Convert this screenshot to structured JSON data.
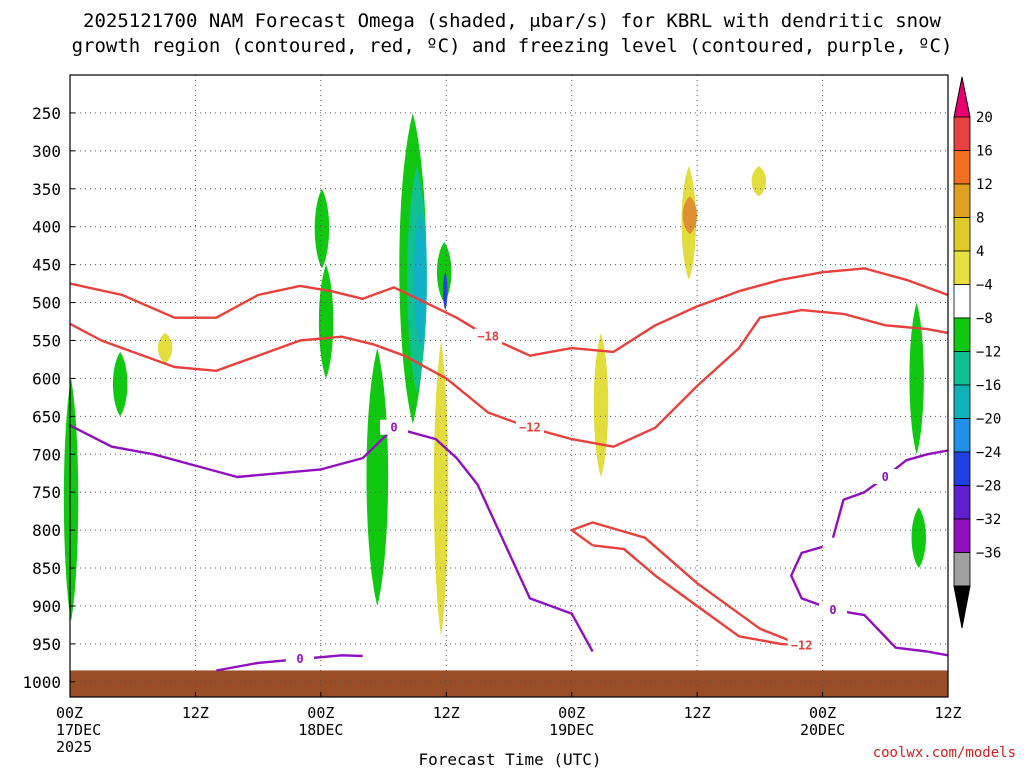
{
  "chart_data": {
    "type": "time-height",
    "title_line1": "2025121700 NAM Forecast Omega (shaded, μbar/s) for KBRL with dendritic snow",
    "title_line2": "growth region (contoured, red, ºC) and freezing level (contoured, purple, ºC)",
    "xlabel": "Forecast Time (UTC)",
    "ylabel": "Pressure (hPa)",
    "credit": "coolwx.com/models",
    "x_ticks": [
      {
        "hour": 0,
        "label": "00Z",
        "sub1": "17DEC",
        "sub2": "2025"
      },
      {
        "hour": 12,
        "label": "12Z",
        "sub1": "",
        "sub2": ""
      },
      {
        "hour": 24,
        "label": "00Z",
        "sub1": "18DEC",
        "sub2": ""
      },
      {
        "hour": 36,
        "label": "12Z",
        "sub1": "",
        "sub2": ""
      },
      {
        "hour": 48,
        "label": "00Z",
        "sub1": "19DEC",
        "sub2": ""
      },
      {
        "hour": 60,
        "label": "12Z",
        "sub1": "",
        "sub2": ""
      },
      {
        "hour": 72,
        "label": "00Z",
        "sub1": "20DEC",
        "sub2": ""
      },
      {
        "hour": 84,
        "label": "12Z",
        "sub1": "",
        "sub2": ""
      }
    ],
    "xlim_hours": [
      0,
      84
    ],
    "y_ticks": [
      250,
      300,
      350,
      400,
      450,
      500,
      550,
      600,
      650,
      700,
      750,
      800,
      850,
      900,
      950,
      1000
    ],
    "ylim_hpa": [
      200,
      1020
    ],
    "colorbar": {
      "labels": [
        "20",
        "16",
        "12",
        "8",
        "4",
        "−4",
        "−8",
        "−12",
        "−16",
        "−20",
        "−24",
        "−28",
        "−32",
        "−36"
      ],
      "top_arrow": "#e8006e",
      "bottom_arrow": "#000000",
      "colors": [
        "#e84040",
        "#f07020",
        "#e0a020",
        "#e0c828",
        "#e8e040",
        "#ffffff",
        "#10c810",
        "#10c090",
        "#10b0b8",
        "#2090e8",
        "#2040e0",
        "#6020d0",
        "#9010c0",
        "#a0a0a0"
      ]
    },
    "omega_cells": [
      {
        "name": "green-early-1",
        "level": -6,
        "x": 0.1,
        "ymin": 600,
        "ymax": 920
      },
      {
        "name": "green-early-2",
        "level": -6,
        "x": 4.8,
        "ymin": 565,
        "ymax": 650
      },
      {
        "name": "yellow-early",
        "level": 5,
        "x": 9.1,
        "ymin": 540,
        "ymax": 580
      },
      {
        "name": "green-mid-1",
        "level": -6,
        "x": 24.1,
        "ymin": 350,
        "ymax": 455
      },
      {
        "name": "green-mid-2",
        "level": -6,
        "x": 24.5,
        "ymin": 450,
        "ymax": 600
      },
      {
        "name": "green-main-low",
        "level": -6,
        "x": 29.4,
        "ymin": 560,
        "ymax": 900
      },
      {
        "name": "green-main-tall",
        "level": -6,
        "x": 32.8,
        "ymin": 250,
        "ymax": 660
      },
      {
        "name": "teal-main",
        "level": -10,
        "x": 33.2,
        "ymin": 320,
        "ymax": 620
      },
      {
        "name": "cyan-main",
        "level": -14,
        "x": 33.5,
        "ymin": 380,
        "ymax": 560
      },
      {
        "name": "green-right",
        "level": -6,
        "x": 35.8,
        "ymin": 420,
        "ymax": 500
      },
      {
        "name": "blue-core",
        "level": -22,
        "x": 35.9,
        "ymin": 460,
        "ymax": 510
      },
      {
        "name": "yellow-lower",
        "level": 5,
        "x": 35.5,
        "ymin": 550,
        "ymax": 940
      },
      {
        "name": "yellow-day2",
        "level": 5,
        "x": 50.8,
        "ymin": 540,
        "ymax": 730
      },
      {
        "name": "yellow-upper",
        "level": 5,
        "x": 59.2,
        "ymin": 320,
        "ymax": 470
      },
      {
        "name": "orange-spot",
        "level": 9,
        "x": 59.3,
        "ymin": 360,
        "ymax": 410
      },
      {
        "name": "yellow-top-right",
        "level": 5,
        "x": 65.9,
        "ymin": 320,
        "ymax": 360
      },
      {
        "name": "green-late",
        "level": -6,
        "x": 81.0,
        "ymin": 500,
        "ymax": 700
      },
      {
        "name": "green-late-low",
        "level": -6,
        "x": 81.2,
        "ymin": 770,
        "ymax": 850
      }
    ],
    "contours": [
      {
        "name": "dgz-minus18",
        "color": "#e8403c",
        "label": "−18",
        "points": [
          [
            0,
            475
          ],
          [
            5,
            490
          ],
          [
            10,
            520
          ],
          [
            14,
            520
          ],
          [
            18,
            490
          ],
          [
            22,
            478
          ],
          [
            25,
            485
          ],
          [
            28,
            495
          ],
          [
            31,
            480
          ],
          [
            34,
            500
          ],
          [
            37,
            520
          ],
          [
            40,
            545
          ],
          [
            44,
            570
          ],
          [
            48,
            560
          ],
          [
            52,
            565
          ],
          [
            56,
            530
          ],
          [
            60,
            505
          ],
          [
            64,
            485
          ],
          [
            68,
            470
          ],
          [
            72,
            460
          ],
          [
            76,
            455
          ],
          [
            80,
            470
          ],
          [
            84,
            490
          ]
        ]
      },
      {
        "name": "dgz-minus12",
        "color": "#e8403c",
        "label": "−12",
        "points": [
          [
            0,
            528
          ],
          [
            3,
            550
          ],
          [
            6,
            565
          ],
          [
            10,
            585
          ],
          [
            14,
            590
          ],
          [
            18,
            570
          ],
          [
            22,
            550
          ],
          [
            26,
            545
          ],
          [
            29,
            555
          ],
          [
            32,
            570
          ],
          [
            36,
            600
          ],
          [
            40,
            645
          ],
          [
            44,
            665
          ],
          [
            48,
            680
          ],
          [
            52,
            690
          ],
          [
            56,
            665
          ],
          [
            60,
            610
          ],
          [
            64,
            560
          ],
          [
            66,
            520
          ],
          [
            70,
            510
          ],
          [
            74,
            515
          ],
          [
            78,
            530
          ],
          [
            82,
            535
          ],
          [
            84,
            540
          ]
        ]
      },
      {
        "name": "dgz-minus12-low",
        "color": "#e8403c",
        "label": "−12",
        "points": [
          [
            50,
            820
          ],
          [
            53,
            825
          ],
          [
            56,
            860
          ],
          [
            60,
            900
          ],
          [
            64,
            940
          ],
          [
            68,
            950
          ],
          [
            70,
            952
          ],
          [
            66,
            930
          ],
          [
            60,
            870
          ],
          [
            55,
            810
          ],
          [
            50,
            790
          ],
          [
            48,
            800
          ],
          [
            50,
            820
          ]
        ]
      },
      {
        "name": "freezing-level",
        "color": "#9010c0",
        "label": "0",
        "points": [
          [
            0,
            662
          ],
          [
            4,
            690
          ],
          [
            8,
            700
          ],
          [
            12,
            715
          ],
          [
            16,
            730
          ],
          [
            20,
            725
          ],
          [
            24,
            720
          ],
          [
            28,
            705
          ],
          [
            31,
            665
          ],
          [
            35,
            680
          ],
          [
            37,
            705
          ],
          [
            39,
            740
          ],
          [
            41,
            800
          ],
          [
            44,
            890
          ],
          [
            48,
            910
          ],
          [
            50,
            960
          ]
        ]
      },
      {
        "name": "freezing-level-2",
        "color": "#9010c0",
        "label": "0",
        "points": [
          [
            14,
            985
          ],
          [
            18,
            975
          ],
          [
            22,
            970
          ],
          [
            26,
            965
          ],
          [
            28,
            966
          ]
        ]
      },
      {
        "name": "freezing-level-3",
        "color": "#9010c0",
        "label": "0",
        "points": [
          [
            72,
            822
          ],
          [
            70,
            830
          ],
          [
            69,
            860
          ],
          [
            70,
            890
          ],
          [
            73,
            905
          ],
          [
            76,
            912
          ],
          [
            79,
            955
          ],
          [
            82,
            960
          ],
          [
            84,
            965
          ]
        ]
      },
      {
        "name": "freezing-level-4",
        "color": "#9010c0",
        "label": "0",
        "points": [
          [
            73,
            810
          ],
          [
            74,
            760
          ],
          [
            76,
            750
          ],
          [
            78,
            730
          ],
          [
            80,
            708
          ],
          [
            82,
            700
          ],
          [
            84,
            695
          ]
        ]
      }
    ],
    "ground": {
      "color": "#9a4e28",
      "pressure_top": 985
    }
  }
}
